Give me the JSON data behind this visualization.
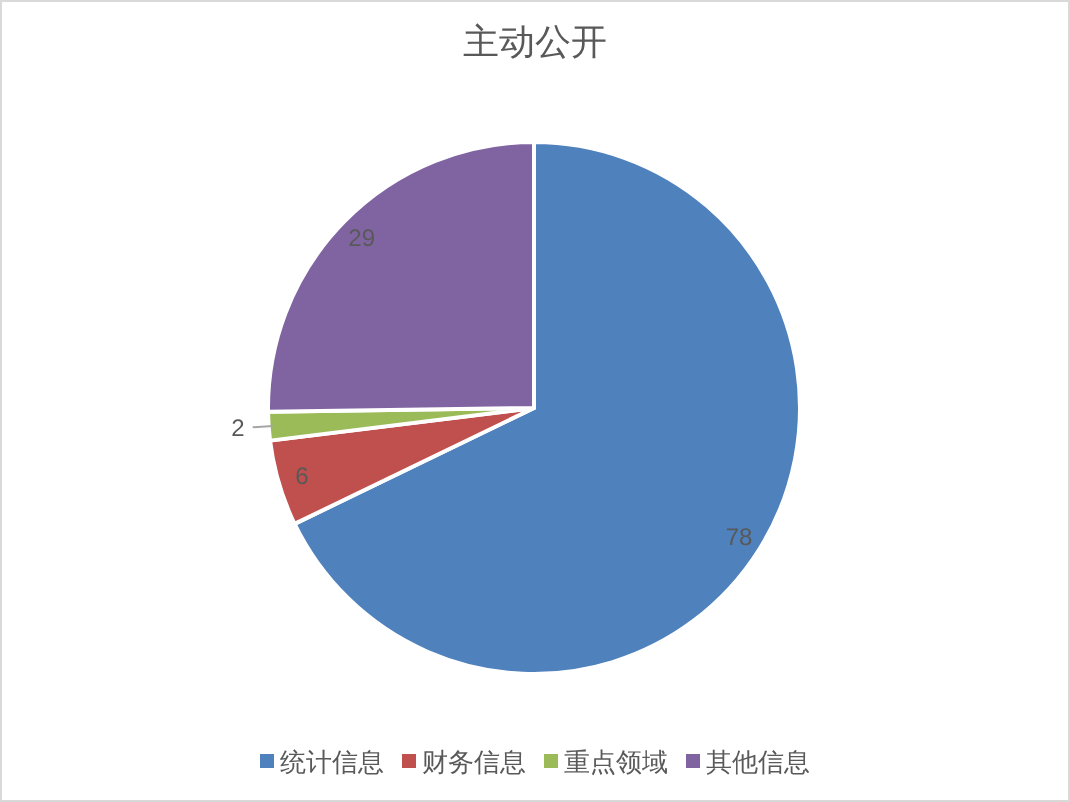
{
  "chart_data": {
    "type": "pie",
    "title": "主动公开",
    "categories": [
      "统计信息",
      "财务信息",
      "重点领域",
      "其他信息"
    ],
    "values": [
      78,
      6,
      2,
      29
    ],
    "colors": [
      "#4f81bd",
      "#c0504d",
      "#9bbb59",
      "#8064a2"
    ],
    "data_labels": true,
    "legend": "bottom"
  }
}
